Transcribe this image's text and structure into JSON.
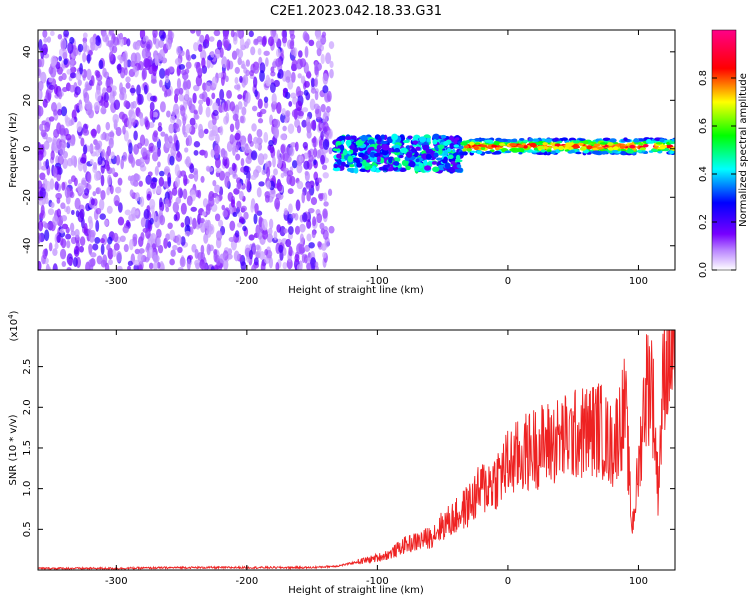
{
  "figure_title": "C2E1.2023.042.18.33.G31",
  "chart_data": [
    {
      "type": "heatmap",
      "xlabel": "Height of straight line (km)",
      "ylabel": "Frequency (Hz)",
      "xlim": [
        -360,
        128
      ],
      "ylim": [
        -50,
        49
      ],
      "x_ticks": [
        -300,
        -200,
        -100,
        0,
        100
      ],
      "x_tick_labels": [
        "-300",
        "-200",
        "-100",
        "0",
        "100"
      ],
      "y_ticks": [
        -40,
        -20,
        0,
        20,
        40
      ],
      "y_tick_labels": [
        "-40",
        "-20",
        "0",
        "20",
        "40"
      ],
      "colorbar": {
        "label": "Normalized spectral amplitude",
        "range": [
          0,
          1
        ],
        "ticks": [
          0.0,
          0.2,
          0.4,
          0.6,
          0.8
        ],
        "tick_labels": [
          "0.0",
          "0.2",
          "0.4",
          "0.6",
          "0.8"
        ],
        "colormap": [
          "#ffffff",
          "#8800ff",
          "#0000ff",
          "#00ffff",
          "#00ff00",
          "#ffff00",
          "#ff0000",
          "#ff0088"
        ]
      },
      "features": [
        {
          "x_range": [
            -360,
            -135
          ],
          "freq_range": [
            -50,
            49
          ],
          "description_level": 0.15
        },
        {
          "x_range": [
            -132,
            -35
          ],
          "freq_center": -2,
          "freq_halfwidth": 7,
          "level": 0.45
        },
        {
          "x_range": [
            -35,
            128
          ],
          "freq_center": 1,
          "freq_halfwidth": 3,
          "level": 0.9
        }
      ]
    },
    {
      "type": "line",
      "xlabel": "Height of straight line (km)",
      "ylabel": "SNR (10 * v/v)",
      "y_multiplier_label": "(x10",
      "y_multiplier_exp": "4",
      "y_multiplier_close": ")",
      "xlim": [
        -360,
        128
      ],
      "ylim": [
        0,
        2.95
      ],
      "x_ticks": [
        -300,
        -200,
        -100,
        0,
        100
      ],
      "x_tick_labels": [
        "-300",
        "-200",
        "-100",
        "0",
        "100"
      ],
      "y_ticks": [
        0.5,
        1.0,
        1.5,
        2.0,
        2.5
      ],
      "y_tick_labels": [
        "0.5",
        "1.0",
        "1.5",
        "2.0",
        "2.5"
      ],
      "color": "#ee2222",
      "series": [
        {
          "x": [
            -360,
            -300,
            -250,
            -200,
            -150,
            -130,
            -115,
            -100,
            -90,
            -80,
            -70,
            -60,
            -50,
            -40,
            -30,
            -20,
            -10,
            0,
            10,
            20,
            30,
            40,
            50,
            60,
            70,
            80,
            90,
            95,
            100,
            105,
            110,
            115,
            120,
            125
          ],
          "values": [
            0.02,
            0.02,
            0.03,
            0.03,
            0.03,
            0.05,
            0.1,
            0.15,
            0.2,
            0.3,
            0.35,
            0.4,
            0.55,
            0.65,
            0.8,
            1.0,
            1.1,
            1.3,
            1.4,
            1.5,
            1.55,
            1.6,
            1.65,
            1.7,
            1.75,
            1.5,
            2.0,
            0.5,
            1.2,
            2.2,
            2.4,
            1.0,
            2.6,
            2.7
          ]
        }
      ]
    }
  ]
}
